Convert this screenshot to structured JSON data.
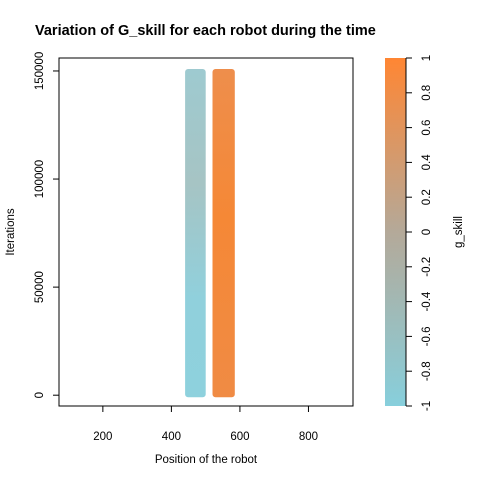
{
  "chart_data": {
    "type": "scatter",
    "title": "Variation of G_skill for each robot during the time",
    "xlabel": "Position of the robot",
    "ylabel": "Iterations",
    "xlim": [
      72,
      930
    ],
    "ylim": [
      -5000,
      156000
    ],
    "x_ticks": [
      200,
      400,
      600,
      800
    ],
    "y_ticks": [
      0,
      50000,
      100000,
      150000
    ],
    "grid": false,
    "series": [
      {
        "x_range": [
          440,
          500
        ],
        "y_range": [
          0,
          150000
        ],
        "dominant_g_skill": -0.9,
        "color": "#8dd1dc"
      },
      {
        "x_range": [
          520,
          585
        ],
        "y_range": [
          0,
          150000
        ],
        "dominant_g_skill": 0.9,
        "color": "#f58b3a"
      }
    ],
    "colorbar": {
      "label": "g_skill",
      "range": [
        -1,
        1
      ],
      "ticks": [
        -1,
        -0.8,
        -0.6,
        -0.4,
        -0.2,
        0,
        0.2,
        0.4,
        0.6,
        0.8,
        1
      ],
      "tick_labels": [
        "-1",
        "-0.8",
        "-0.6",
        "-0.4",
        "-0.2",
        "0",
        "0.2",
        "0.4",
        "0.6",
        "0.8",
        "1"
      ],
      "color_low": "#87cfdc",
      "color_mid": "#b4a999",
      "color_high": "#ff8633"
    }
  }
}
